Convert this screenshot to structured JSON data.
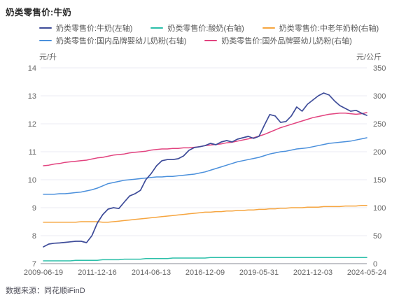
{
  "header": {
    "title": "奶类零售价:牛奶"
  },
  "source_note": "数据来源：同花顺iFinD",
  "colors": {
    "title_text": "#262626",
    "legend_text": "#595959",
    "tick_text": "#666666",
    "grid": "#ebebf3",
    "axis_line": "#9fa0aa",
    "background": "#ffffff"
  },
  "chart_data": {
    "type": "line",
    "title": "奶类零售价:牛奶",
    "grid": true,
    "legend_position": "top",
    "x_axis": {
      "start": "2009-06-19",
      "end": "2024-05-24",
      "tick_labels": [
        "2009-06-19",
        "2011-12-16",
        "2014-06-13",
        "2016-12-09",
        "2019-05-31",
        "2021-12-03",
        "2024-05-24"
      ]
    },
    "left_axis": {
      "unit": "元/升",
      "min": 7,
      "max": 14,
      "ticks": [
        14,
        13,
        12,
        11,
        10,
        9,
        8,
        7
      ]
    },
    "right_axis": {
      "unit": "元/公斤",
      "min": 0,
      "max": 350,
      "ticks": [
        350,
        300,
        250,
        200,
        150,
        100,
        50,
        0
      ]
    },
    "legend_rows": [
      [
        0,
        1,
        2
      ],
      [
        3,
        4
      ]
    ],
    "draw_order": [
      1,
      2,
      3,
      4,
      0
    ],
    "series": [
      {
        "name": "奶类零售价:牛奶(左轴)",
        "axis": "left",
        "color": "#3e4c99",
        "values": [
          7.6,
          7.7,
          7.73,
          7.74,
          7.76,
          7.78,
          7.8,
          7.8,
          7.75,
          8.0,
          8.45,
          8.75,
          8.95,
          9.0,
          8.97,
          9.2,
          9.42,
          9.5,
          9.62,
          10.0,
          10.22,
          10.5,
          10.68,
          10.72,
          10.72,
          10.75,
          10.85,
          11.05,
          11.15,
          11.18,
          11.22,
          11.3,
          11.25,
          11.35,
          11.4,
          11.35,
          11.45,
          11.5,
          11.55,
          11.48,
          11.55,
          11.95,
          12.33,
          12.28,
          12.05,
          12.08,
          12.28,
          12.6,
          12.45,
          12.7,
          12.85,
          13.0,
          13.1,
          13.03,
          12.82,
          12.65,
          12.55,
          12.45,
          12.48,
          12.38,
          12.3
        ]
      },
      {
        "name": "奶类零售价:酸奶(右轴)",
        "axis": "right",
        "color": "#2bbfa9",
        "values": [
          5,
          5,
          5,
          5,
          5,
          5,
          6,
          6,
          6,
          6,
          6,
          7,
          7,
          7,
          7,
          8,
          8,
          8,
          8,
          9,
          9,
          9,
          9,
          9,
          10,
          10,
          10,
          10,
          10,
          10,
          10,
          11,
          11,
          11,
          11,
          11,
          11,
          11,
          11,
          11,
          11,
          11,
          11,
          11,
          11,
          11,
          11,
          11,
          11,
          11,
          11,
          11,
          11,
          11,
          11,
          11,
          11,
          11,
          11,
          11,
          11
        ]
      },
      {
        "name": "奶类零售价:中老年奶粉(右轴)",
        "axis": "right",
        "color": "#f6a53f",
        "values": [
          74,
          74,
          74,
          74,
          74,
          74,
          74,
          75,
          75,
          75,
          75,
          74,
          74,
          75,
          76,
          77,
          78,
          79,
          80,
          81,
          82,
          83,
          84,
          85,
          86,
          87,
          88,
          89,
          90,
          91,
          92,
          92,
          93,
          93,
          94,
          94,
          95,
          95,
          96,
          96,
          97,
          97,
          98,
          98,
          99,
          99,
          100,
          100,
          100,
          101,
          101,
          101,
          102,
          102,
          102,
          102,
          103,
          103,
          103,
          104,
          104
        ]
      },
      {
        "name": "奶类零售价:国内品牌婴幼儿奶粉(右轴)",
        "axis": "right",
        "color": "#4b90dc",
        "values": [
          124,
          124,
          124,
          125,
          125,
          126,
          127,
          128,
          130,
          132,
          135,
          139,
          143,
          145,
          147,
          149,
          150,
          151,
          152,
          153,
          154,
          155,
          155,
          156,
          156,
          157,
          158,
          159,
          160,
          162,
          164,
          167,
          170,
          173,
          176,
          179,
          182,
          184,
          186,
          188,
          190,
          193,
          196,
          198,
          200,
          201,
          203,
          205,
          206,
          207,
          209,
          211,
          213,
          215,
          216,
          217,
          218,
          219,
          221,
          223,
          225
        ]
      },
      {
        "name": "奶类零售价:国外品牌婴幼儿奶粉(右轴)",
        "axis": "right",
        "color": "#e2437f",
        "values": [
          175,
          176,
          178,
          179,
          181,
          182,
          183,
          184,
          185,
          187,
          189,
          190,
          192,
          194,
          195,
          196,
          198,
          199,
          200,
          201,
          203,
          204,
          205,
          205,
          206,
          206,
          207,
          207,
          208,
          209,
          211,
          212,
          213,
          214,
          216,
          217,
          219,
          221,
          223,
          225,
          228,
          231,
          235,
          239,
          243,
          246,
          249,
          252,
          255,
          258,
          261,
          263,
          265,
          267,
          268,
          269,
          269,
          268,
          267,
          268,
          270
        ]
      }
    ]
  }
}
